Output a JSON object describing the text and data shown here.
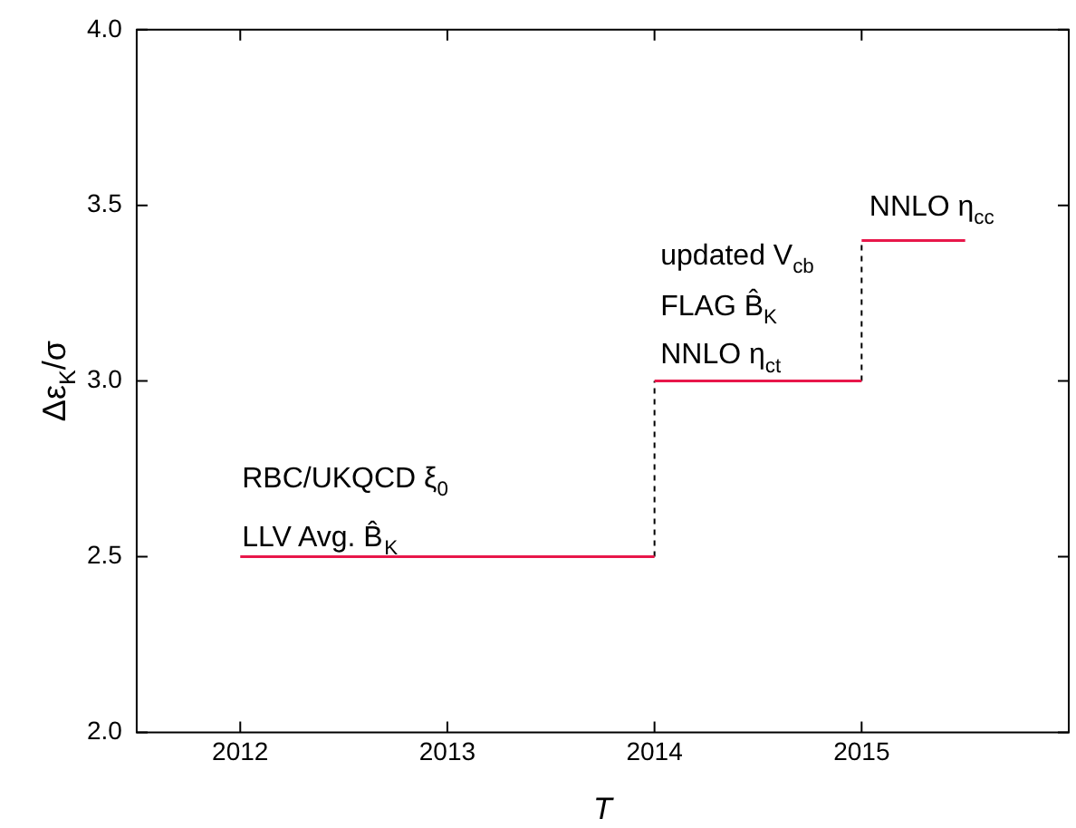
{
  "chart_data": {
    "type": "line",
    "xlabel": "T",
    "ylabel": "Δε$_{K}$/σ",
    "series": [
      {
        "color": "#e8174a",
        "x": [
          2012,
          2014
        ],
        "values": [
          2.5,
          2.5
        ]
      },
      {
        "color": "#e8174a",
        "x": [
          2014,
          2015
        ],
        "values": [
          3.0,
          3.0
        ]
      },
      {
        "color": "#e8174a",
        "x": [
          2015,
          2015.5
        ],
        "values": [
          3.4,
          3.4
        ]
      },
      {
        "color": "#000000",
        "line_style": "dashed",
        "x": [
          2014,
          2014
        ],
        "values": [
          2.5,
          3.0
        ]
      },
      {
        "color": "#000000",
        "line_style": "dashed",
        "x": [
          2015,
          2015
        ],
        "values": [
          3.0,
          3.4
        ]
      }
    ],
    "xlim": [
      2011.5,
      2016
    ],
    "xticks": [
      2012,
      2013,
      2014,
      2015
    ],
    "ylim": [
      2,
      4
    ],
    "yticks": [
      {
        "value": 2,
        "label": "2.0"
      },
      {
        "value": 2.5,
        "label": "2.5"
      },
      {
        "value": 3,
        "label": "3.0"
      },
      {
        "value": 3.5,
        "label": "3.5"
      },
      {
        "value": 4,
        "label": "4.0"
      }
    ],
    "grid": false,
    "legend": false,
    "annotations": [
      "RBC/UKQCD ξ$_{0}$",
      "LLV Avg. B̂$_{K}$",
      "updated V$_{cb}$",
      "FLAG B̂$_{K}$",
      "NNLO η$_{ct}$",
      "NNLO η$_{cc}$"
    ]
  }
}
